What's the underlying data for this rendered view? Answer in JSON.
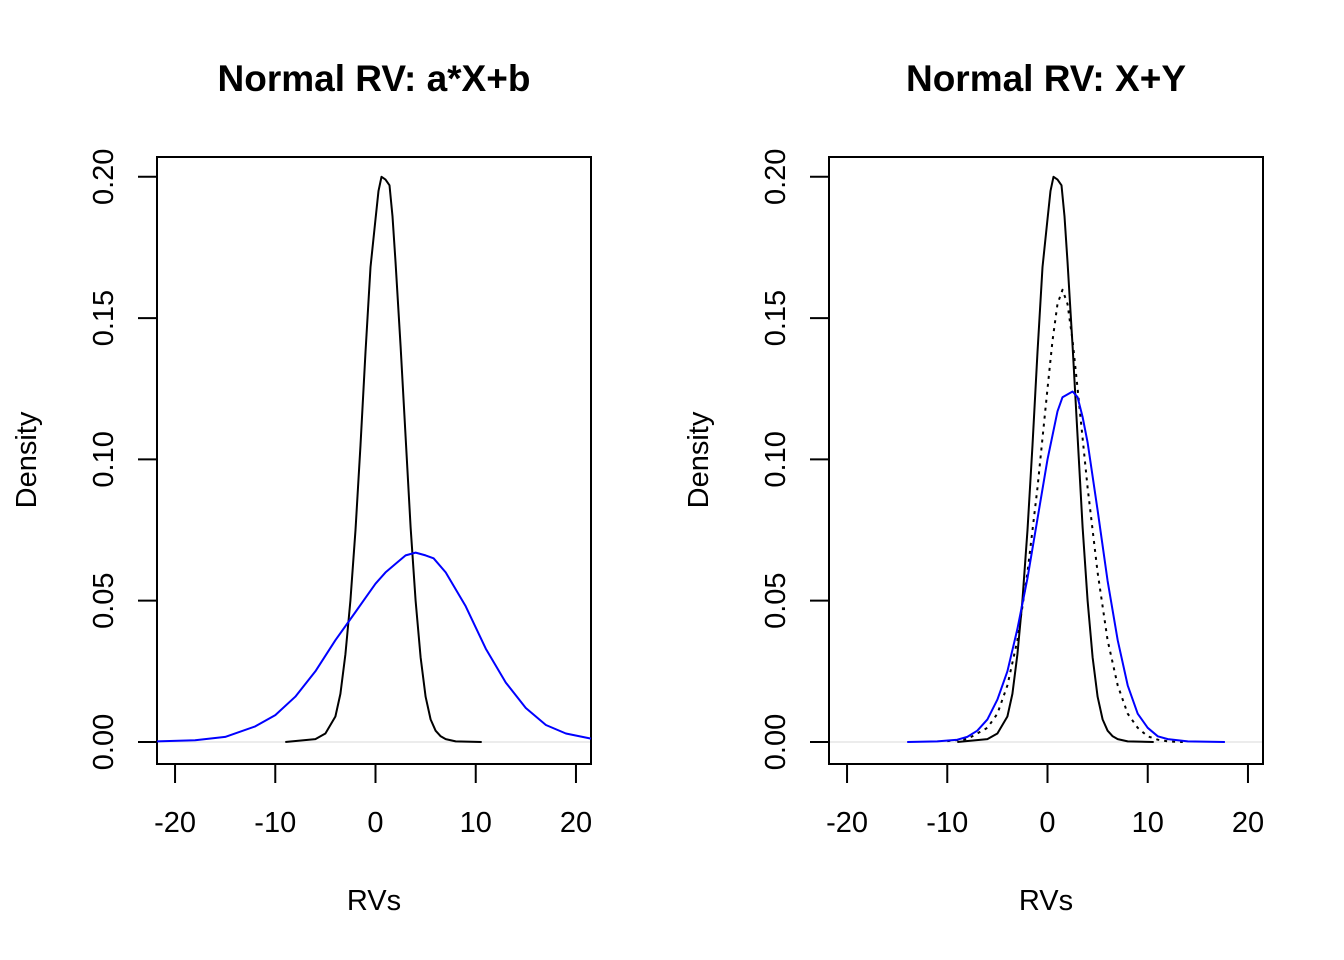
{
  "chart_data": [
    {
      "type": "line",
      "title": "Normal RV: a*X+b",
      "xlabel": "RVs",
      "ylabel": "Density",
      "xlim": [
        -21.8,
        21.5
      ],
      "ylim": [
        -0.0078,
        0.207
      ],
      "x_ticks": [
        -20,
        -10,
        0,
        10,
        20
      ],
      "x_tick_labels": [
        "-20",
        "-10",
        "0",
        "10",
        "20"
      ],
      "y_ticks": [
        0,
        0.05,
        0.1,
        0.15,
        0.2
      ],
      "y_tick_labels": [
        "0.00",
        "0.05",
        "0.10",
        "0.15",
        "0.20"
      ],
      "grid": false,
      "legend": "none",
      "series": [
        {
          "color": "#000000",
          "dash": "solid",
          "x": [
            -9,
            -6,
            -5,
            -4,
            -3.5,
            -3,
            -2.5,
            -2,
            -1.5,
            -1,
            -0.5,
            0,
            0.3,
            0.6,
            1,
            1.4,
            1.7,
            2,
            2.5,
            3,
            3.5,
            4,
            4.5,
            5,
            5.5,
            6,
            6.5,
            7,
            8,
            10.6
          ],
          "y": [
            0.0,
            0.001,
            0.003,
            0.009,
            0.017,
            0.031,
            0.05,
            0.075,
            0.105,
            0.138,
            0.168,
            0.185,
            0.195,
            0.2,
            0.199,
            0.197,
            0.186,
            0.17,
            0.14,
            0.108,
            0.076,
            0.05,
            0.03,
            0.016,
            0.008,
            0.004,
            0.002,
            0.001,
            0.0002,
            0.0
          ]
        },
        {
          "color": "#0000ff",
          "dash": "solid",
          "x": [
            -21.8,
            -18,
            -15,
            -12,
            -10,
            -8,
            -6,
            -4,
            -2,
            -1,
            0,
            1,
            2,
            3,
            4,
            5,
            5.8,
            7,
            9,
            11,
            13,
            15,
            17,
            19,
            21.5
          ],
          "y": [
            0.0002,
            0.0006,
            0.0018,
            0.0055,
            0.0095,
            0.016,
            0.025,
            0.036,
            0.046,
            0.051,
            0.056,
            0.06,
            0.063,
            0.066,
            0.067,
            0.066,
            0.065,
            0.06,
            0.048,
            0.033,
            0.021,
            0.012,
            0.006,
            0.003,
            0.0012
          ]
        }
      ]
    },
    {
      "type": "line",
      "title": "Normal RV: X+Y",
      "xlabel": "RVs",
      "ylabel": "Density",
      "xlim": [
        -21.8,
        21.5
      ],
      "ylim": [
        -0.0078,
        0.207
      ],
      "x_ticks": [
        -20,
        -10,
        0,
        10,
        20
      ],
      "x_tick_labels": [
        "-20",
        "-10",
        "0",
        "10",
        "20"
      ],
      "y_ticks": [
        0,
        0.05,
        0.1,
        0.15,
        0.2
      ],
      "y_tick_labels": [
        "0.00",
        "0.05",
        "0.10",
        "0.15",
        "0.20"
      ],
      "grid": false,
      "legend": "none",
      "series": [
        {
          "color": "#000000",
          "dash": "solid",
          "x": [
            -9,
            -6,
            -5,
            -4,
            -3.5,
            -3,
            -2.5,
            -2,
            -1.5,
            -1,
            -0.5,
            0,
            0.3,
            0.6,
            1,
            1.4,
            1.7,
            2,
            2.5,
            3,
            3.5,
            4,
            4.5,
            5,
            5.5,
            6,
            6.5,
            7,
            8,
            10.6
          ],
          "y": [
            0.0,
            0.001,
            0.003,
            0.009,
            0.017,
            0.031,
            0.05,
            0.075,
            0.105,
            0.138,
            0.168,
            0.185,
            0.195,
            0.2,
            0.199,
            0.197,
            0.186,
            0.17,
            0.14,
            0.108,
            0.076,
            0.05,
            0.03,
            0.016,
            0.008,
            0.004,
            0.002,
            0.001,
            0.0002,
            0.0
          ]
        },
        {
          "color": "#000000",
          "dash": "dotted",
          "x": [
            -10,
            -8,
            -6,
            -5,
            -4,
            -3,
            -2,
            -1,
            0,
            0.5,
            1,
            1.5,
            2,
            2.5,
            3,
            4,
            5,
            6,
            7,
            8,
            9,
            10,
            11,
            12,
            13.5
          ],
          "y": [
            0.0003,
            0.001,
            0.005,
            0.01,
            0.02,
            0.036,
            0.06,
            0.09,
            0.125,
            0.142,
            0.155,
            0.16,
            0.155,
            0.142,
            0.125,
            0.09,
            0.06,
            0.036,
            0.02,
            0.01,
            0.005,
            0.002,
            0.0008,
            0.0002,
            0.0
          ]
        },
        {
          "color": "#0000ff",
          "dash": "solid",
          "x": [
            -14,
            -11,
            -9,
            -8,
            -7,
            -6,
            -5,
            -4,
            -3,
            -2,
            -1,
            0,
            1,
            1.5,
            2.5,
            3,
            3.5,
            4,
            5,
            6,
            7,
            8,
            9,
            10,
            11,
            12,
            14,
            17.7
          ],
          "y": [
            0.0,
            0.0002,
            0.0008,
            0.0018,
            0.004,
            0.008,
            0.015,
            0.025,
            0.04,
            0.058,
            0.079,
            0.1,
            0.117,
            0.122,
            0.124,
            0.122,
            0.115,
            0.106,
            0.082,
            0.057,
            0.036,
            0.02,
            0.01,
            0.005,
            0.002,
            0.001,
            0.0002,
            0.0
          ]
        }
      ]
    }
  ]
}
